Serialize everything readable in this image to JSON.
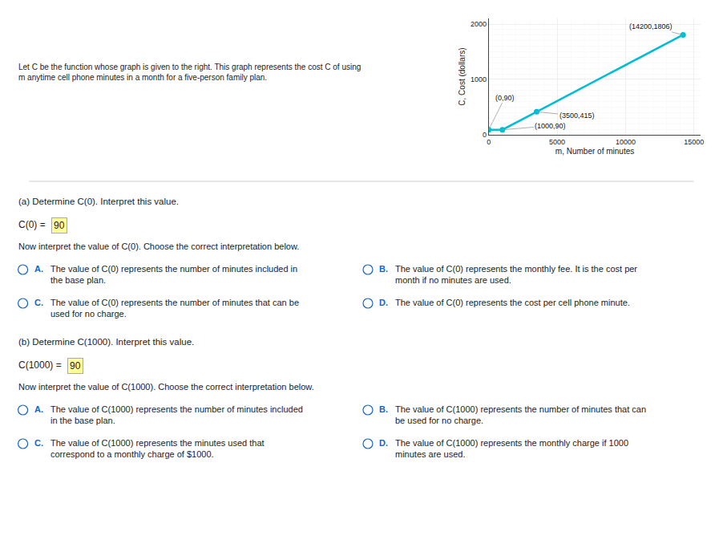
{
  "chart_data": {
    "type": "line",
    "title": "Let C be the function whose graph is given to the right. This graph represents the cost C of using\nm anytime cell phone minutes in a month for a five-person family plan.",
    "xlabel": "m, Number of minutes",
    "ylabel": "C, Cost (dollars)",
    "x": [
      0,
      1000,
      3500,
      14200
    ],
    "values": [
      90,
      90,
      415,
      1806
    ],
    "color": "#00bcd4",
    "marker": "circle",
    "xlim": [
      0,
      15500
    ],
    "ylim": [
      0,
      2100
    ],
    "xticks": [
      0,
      5000,
      10000,
      15000
    ],
    "yticks": [
      0,
      1000,
      2000
    ],
    "grid": true,
    "annotations": [
      {
        "x": 0,
        "y": 90,
        "text": "(0,90)"
      },
      {
        "x": 1000,
        "y": 90,
        "text": "(1000,90)"
      },
      {
        "x": 3500,
        "y": 415,
        "text": "(3500,415)"
      },
      {
        "x": 14200,
        "y": 1806,
        "text": "(14200,1806)"
      }
    ],
    "questions": [
      {
        "header": "(a) Determine C(0). Interpret this value.",
        "equation": "C(0) = ",
        "answer": "90",
        "prompt": "Now interpret the value of C(0). Choose the correct interpretation below.",
        "choices": [
          [
            "A.",
            "The value of C(0) represents the number of minutes included in\nthe base plan."
          ],
          [
            "B.",
            "The value of C(0) represents the monthly fee. It is the cost per\nmonth if no minutes are used."
          ],
          [
            "C.",
            "The value of C(0) represents the number of minutes that can be\nused for no charge."
          ],
          [
            "D.",
            "The value of C(0) represents the cost per cell phone minute."
          ]
        ]
      },
      {
        "header": "(b) Determine C(1000). Interpret this value.",
        "equation": "C(1000) = ",
        "answer": "90",
        "prompt": "Now interpret the value of C(1000). Choose the correct interpretation below.",
        "choices": [
          [
            "A.",
            "The value of C(1000) represents the number of minutes included\nin the base plan."
          ],
          [
            "B.",
            "The value of C(1000) represents the number of minutes that can\nbe used for no charge."
          ],
          [
            "C.",
            "The value of C(1000) represents the minutes used that\ncorrespond to a monthly charge of $1000."
          ],
          [
            "D.",
            "The value of C(1000) represents the monthly charge if 1000\nminutes are used."
          ]
        ]
      }
    ]
  }
}
